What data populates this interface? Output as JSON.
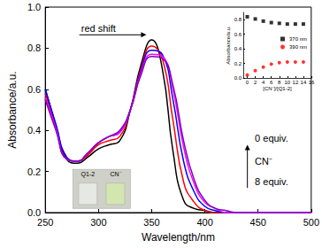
{
  "chart_data": [
    {
      "type": "line",
      "xlabel": "Wavelength/nm",
      "ylabel": "Absorbance/a.u.",
      "x": [
        250,
        260,
        270,
        280,
        290,
        300,
        310,
        320,
        330,
        340,
        350,
        360,
        370,
        380,
        390,
        400,
        410,
        420,
        430,
        440,
        450,
        460,
        470,
        480,
        490,
        500
      ],
      "series": [
        {
          "color": "#000000",
          "values": [
            0.6,
            0.42,
            0.26,
            0.24,
            0.27,
            0.31,
            0.33,
            0.35,
            0.5,
            0.72,
            0.84,
            0.7,
            0.3,
            0.06,
            0.02,
            0.01,
            0,
            0,
            0,
            0,
            0,
            0,
            0,
            0,
            0,
            0
          ]
        },
        {
          "color": "#ff0000",
          "values": [
            0.58,
            0.42,
            0.27,
            0.25,
            0.28,
            0.33,
            0.35,
            0.37,
            0.5,
            0.7,
            0.81,
            0.75,
            0.45,
            0.15,
            0.05,
            0.01,
            0,
            0,
            0,
            0,
            0,
            0,
            0,
            0,
            0,
            0
          ]
        },
        {
          "color": "#0000ff",
          "values": [
            0.6,
            0.43,
            0.27,
            0.25,
            0.29,
            0.34,
            0.37,
            0.39,
            0.5,
            0.69,
            0.79,
            0.77,
            0.55,
            0.25,
            0.1,
            0.03,
            0.01,
            0,
            0,
            0,
            0,
            0,
            0,
            0,
            0,
            0
          ]
        },
        {
          "color": "#ff00ff",
          "values": [
            0.56,
            0.41,
            0.26,
            0.25,
            0.29,
            0.34,
            0.37,
            0.39,
            0.5,
            0.68,
            0.77,
            0.76,
            0.6,
            0.32,
            0.14,
            0.05,
            0.02,
            0,
            0,
            0,
            0,
            0,
            0,
            0,
            0,
            0
          ]
        },
        {
          "color": "#8000c0",
          "values": [
            0.55,
            0.4,
            0.26,
            0.25,
            0.29,
            0.34,
            0.37,
            0.4,
            0.5,
            0.67,
            0.76,
            0.75,
            0.62,
            0.35,
            0.16,
            0.06,
            0.02,
            0.01,
            0,
            0,
            0,
            0,
            0,
            0,
            0,
            0
          ]
        }
      ],
      "xlim": [
        250,
        500
      ],
      "xticks": [
        250,
        300,
        350,
        400,
        450,
        500
      ],
      "ylim": [
        0,
        1.0
      ],
      "yticks": [
        {
          "value": 0,
          "label": "0.0"
        },
        0.2,
        0.4,
        0.6,
        0.8,
        {
          "value": 1.0,
          "label": "1.0"
        }
      ],
      "grid": false,
      "annotations": [
        "red shift",
        "0 equiv.",
        "CN⁻",
        "8 equiv."
      ],
      "photo_labels": [
        "Q1-2",
        "CN⁻"
      ]
    },
    {
      "type": "scatter",
      "xlabel": "[CN⁻]/[Q1-2]",
      "ylabel": "Absorbance/a.u.",
      "x": [
        0,
        2,
        4,
        6,
        8,
        10,
        12,
        14
      ],
      "series": [
        {
          "name": "370 nm",
          "color": "#000000",
          "marker": "square",
          "values": [
            0.84,
            0.81,
            0.78,
            0.76,
            0.75,
            0.74,
            0.74,
            0.74
          ]
        },
        {
          "name": "390 nm",
          "color": "#ff0000",
          "marker": "circle",
          "values": [
            0.04,
            0.1,
            0.15,
            0.19,
            0.21,
            0.22,
            0.22,
            0.22
          ]
        }
      ],
      "xlim": [
        -1,
        16
      ],
      "xticks": [
        0,
        2,
        4,
        6,
        8,
        10,
        12,
        14,
        16
      ],
      "ylim": [
        0,
        0.9
      ],
      "yticks": [
        {
          "value": 0,
          "label": "0.0"
        },
        0.2,
        0.4,
        0.6,
        0.8
      ],
      "grid": false,
      "legend": "right"
    }
  ]
}
